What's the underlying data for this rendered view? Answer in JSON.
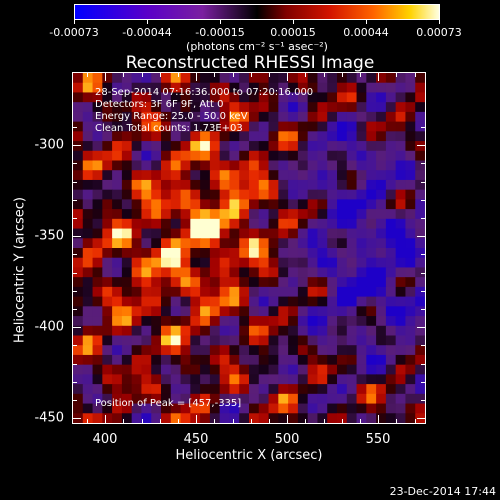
{
  "colorbar": {
    "ticks": [
      "-0.00073",
      "-0.00044",
      "-0.00015",
      "0.00015",
      "0.00044",
      "0.00073"
    ],
    "units": "(photons cm⁻² s⁻¹ asec⁻²)"
  },
  "title": "Reconstructed RHESSI Image",
  "info": {
    "time": "28-Sep-2014 07:16:36.000 to 07:20:16.000",
    "detectors": "Detectors: 3F 6F 9F, Att 0",
    "energy": "Energy Range: 25.0 - 50.0 keV",
    "clean": "Clean     Total counts: 1.73E+03",
    "peak": "Position of Peak = [457,-335]"
  },
  "axes": {
    "xlabel": "Heliocentric X (arcsec)",
    "ylabel": "Heliocentric Y (arcsec)",
    "xticks": [
      "400",
      "450",
      "500",
      "550"
    ],
    "yticks": [
      "-300",
      "-350",
      "-400",
      "-450"
    ],
    "xlim": [
      382,
      575
    ],
    "ylim": [
      -451,
      -258
    ]
  },
  "footer": {
    "date": "23-Dec-2014 17:44"
  }
}
